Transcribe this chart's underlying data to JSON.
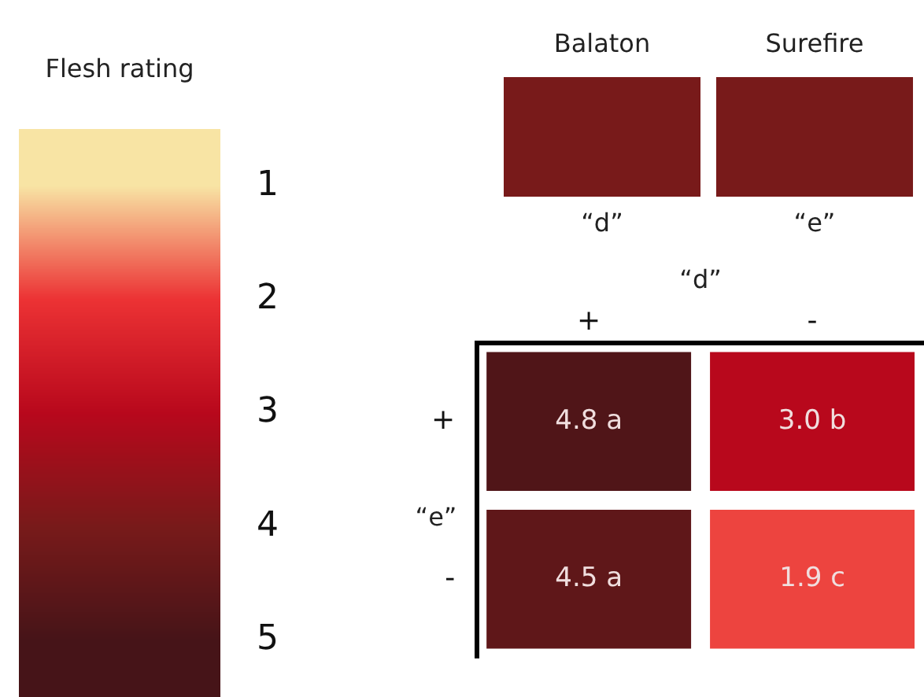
{
  "chart_data": {
    "type": "heatmap",
    "xlabel": "“d”",
    "ylabel": "“e”",
    "categories": [
      "+",
      "-"
    ],
    "y_categories": [
      "+",
      "-"
    ],
    "cells": [
      [
        4.8,
        3.0
      ],
      [
        4.5,
        1.9
      ]
    ],
    "cell_labels": [
      [
        "4.8 a",
        "3.0 b"
      ],
      [
        "4.5 a",
        "1.9 c"
      ]
    ],
    "clabel": "Flesh rating",
    "clim": [
      0.5,
      5.5
    ],
    "cticks": [
      1,
      2,
      3,
      4,
      5
    ],
    "colors": [
      "#f8e4a4",
      "#ec3234",
      "#b8081c",
      "#781a1a",
      "#461418"
    ],
    "annotations": [
      "Balaton",
      "Surefire",
      "“d”",
      "“e”"
    ]
  }
}
